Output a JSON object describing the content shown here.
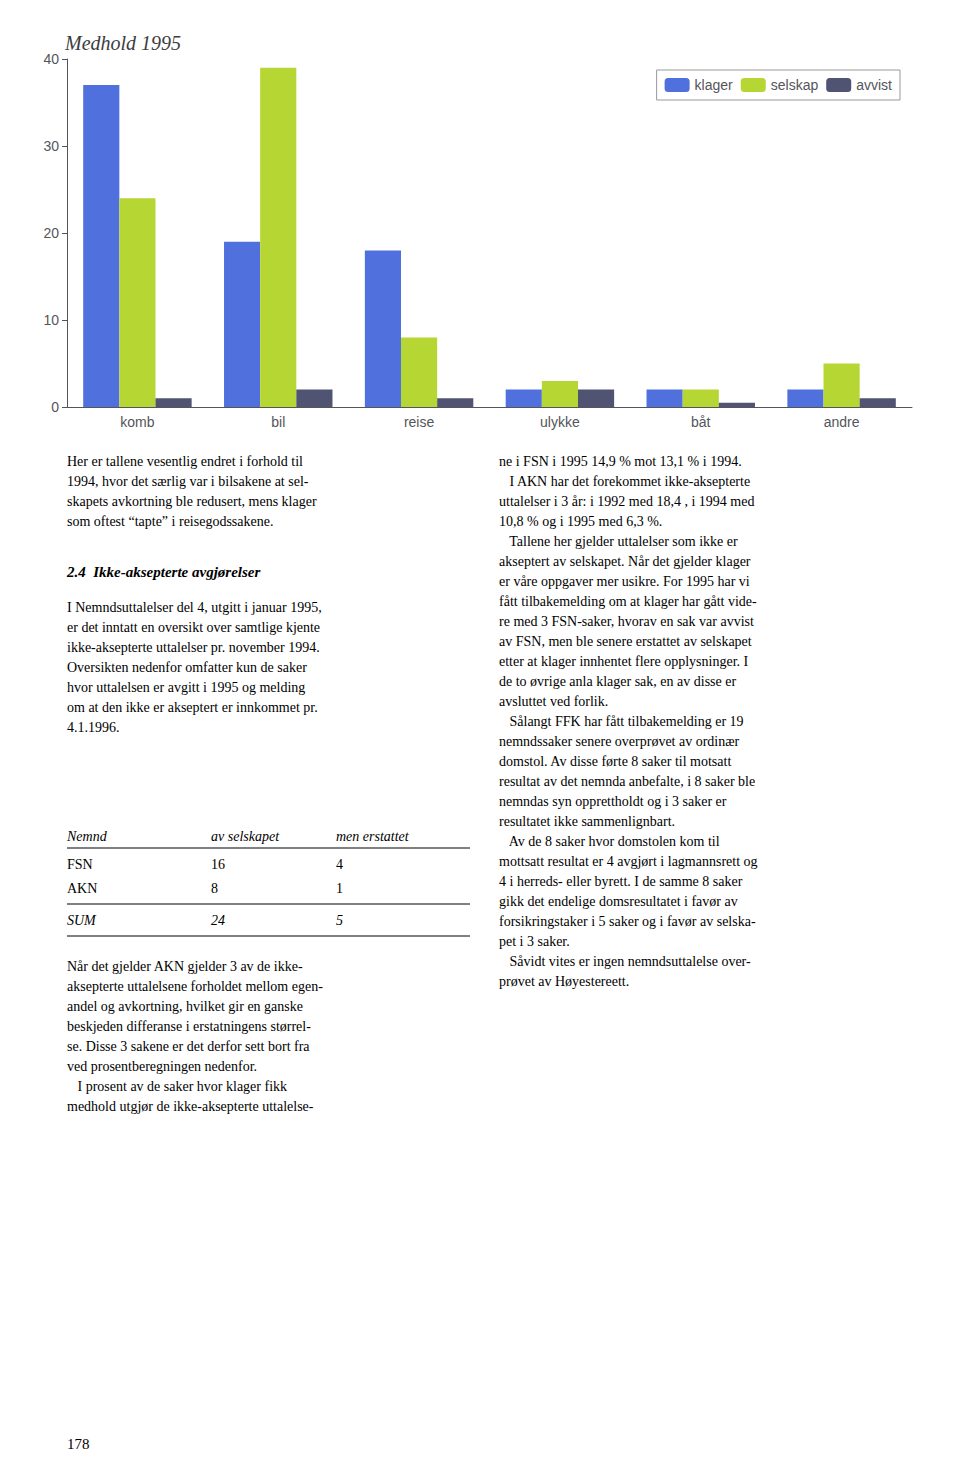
{
  "chart_data": {
    "type": "bar",
    "title": "Medhold 1995",
    "categories": [
      "komb",
      "bil",
      "reise",
      "ulykke",
      "båt",
      "andre"
    ],
    "series": [
      {
        "name": "klager",
        "values": [
          37,
          19,
          18,
          2,
          2,
          2
        ]
      },
      {
        "name": "selskap",
        "values": [
          24,
          39,
          8,
          3,
          2,
          5
        ]
      },
      {
        "name": "avvist",
        "values": [
          1,
          2,
          1,
          2,
          0.5,
          1
        ]
      }
    ],
    "ylim": [
      0,
      40
    ],
    "yticks": [
      0,
      10,
      20,
      30,
      40
    ],
    "grid": false,
    "legend": "upper right",
    "annotations": [
      "Her er tallene vesentlig endret i forhold til\n1994, hvor det særlig var i bilsakene at sel-\nskapets avkortning ble redusert, mens klager\nsom oftest “tapte” i reisegodssakene.",
      "ne i FSN i 1995 14,9 % mot 13,1 % i 1994.\n   I AKN har det forekommet ikke-aksepterte\nuttalelser i 3 år: i 1992 med 18,4 , i 1994 med\n10,8 % og i 1995 med 6,3 %.\n   Tallene her gjelder uttalelser som ikke er\nakseptert av selskapet. Når det gjelder klager\ner våre oppgaver mer usikre. For 1995 har vi\nfått tilbakemelding om at klager har gått vide-\nre med 3 FSN-saker, hvorav en sak var avvist\nav FSN, men ble senere erstattet av selskapet\netter at klager innhentet flere opplysninger. I\nde to øvrige anla klager sak, en av disse er\navsluttet ved forlik.\n   Sålangt FFK har fått tilbakemelding er 19\nnemndssaker senere overprøvet av ordinær\ndomstol. Av disse førte 8 saker til motsatt\nresultat av det nemnda anbefalte, i 8 saker ble\nnemndas syn opprettholdt og i 3 saker er\nresultatet ikke sammenlignbart.\n   Av de 8 saker hvor domstolen kom til\nmottsatt resultat er 4 avgjørt i lagmannsrett og\n4 i herreds- eller byrett. I de samme 8 saker\ngikk det endelige domsresultatet i favør av\nforsikringstaker i 5 saker og i favør av selska-\npet i 3 saker.\n   Såvidt vites er ingen nemndsuttalelse over-\nprøvet av Høyestereett.",
      "2.4  Ikke-aksepterte avgjørelser",
      "I Nemndsuttalelser del 4, utgitt i januar 1995,\ner det inntatt en oversikt over samtlige kjente\nikke-aksepterte uttalelser pr. november 1994.\nOversikten nedenfor omfatter kun de saker\nhvor uttalelsen er avgitt i 1995 og melding\nom at den ikke er akseptert er innkommet pr.\n4.1.1996.",
      "Når det gjelder AKN gjelder 3 av de ikke-\naksepterte uttalelsene forholdet mellom egen-\nandel og avkortning, hvilket gir en ganske\nbeskjeden differanse i erstatningens størrel-\nse. Disse 3 sakene er det derfor sett bort fra\nved prosentberegningen nedenfor.\n   I prosent av de saker hvor klager fikk\nmedhold utgjør de ikke-aksepterte uttalelse-",
      "178"
    ],
    "table": {
      "headers": [
        "Nemnd",
        "av selskapet",
        "men erstattet"
      ],
      "rows": [
        [
          "FSN",
          "16",
          "4"
        ],
        [
          "AKN",
          "8",
          "1"
        ],
        [
          "SUM",
          "24",
          "5"
        ]
      ]
    }
  }
}
